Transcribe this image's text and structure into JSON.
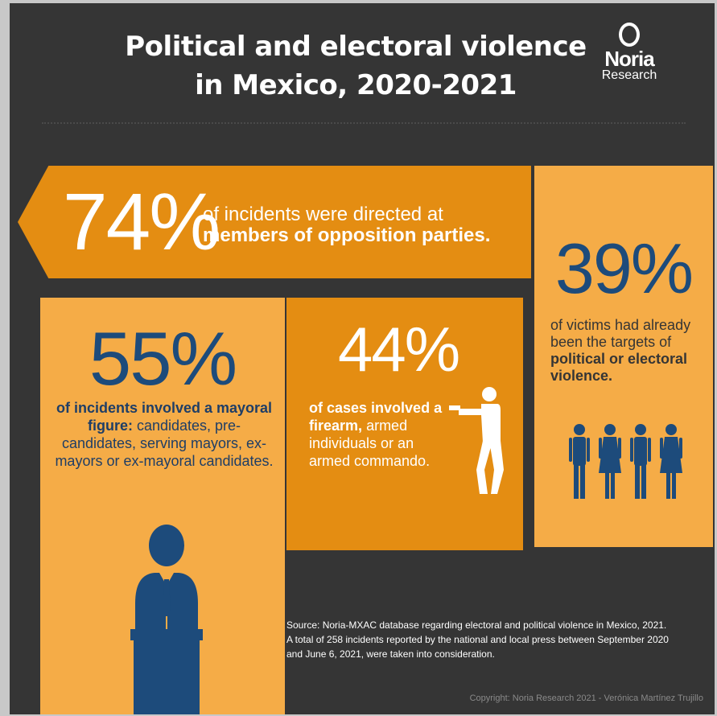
{
  "header": {
    "title_line1": "Political and electoral violence",
    "title_line2": "in Mexico, 2020-2021",
    "logo_name": "Noria",
    "logo_sub": "Research"
  },
  "stat_opposition": {
    "value": "74%",
    "text_plain": "of incidents were directed at",
    "text_bold": "members of opposition parties."
  },
  "stat_victims": {
    "value": "39%",
    "text_plain": "of victims had already been the targets of",
    "text_bold": "political or electoral violence."
  },
  "stat_mayoral": {
    "value": "55%",
    "text_bold": "of incidents involved a mayoral figure:",
    "text_plain": "candidates, pre-candidates, serving mayors, ex-mayors or ex-mayoral candidates."
  },
  "stat_firearm": {
    "value": "44%",
    "text_bold": "of cases involved a firearm,",
    "text_plain": "armed individuals or an armed commando."
  },
  "footer": {
    "source": "Source: Noria-MXAC database regarding electoral and political violence in Mexico, 2021. A total of 258 incidents reported by the national and local press between September 2020 and June 6, 2021, were taken into consideration.",
    "copyright": "Copyright: Noria Research 2021 - Verónica Martínez Trujillo"
  },
  "colors": {
    "background": "#353535",
    "orange_dark": "#e48d12",
    "orange_light": "#f5ac47",
    "navy": "#1d4b7b"
  },
  "icons": [
    "people-icon",
    "speaker-podium-icon",
    "shooter-icon"
  ]
}
